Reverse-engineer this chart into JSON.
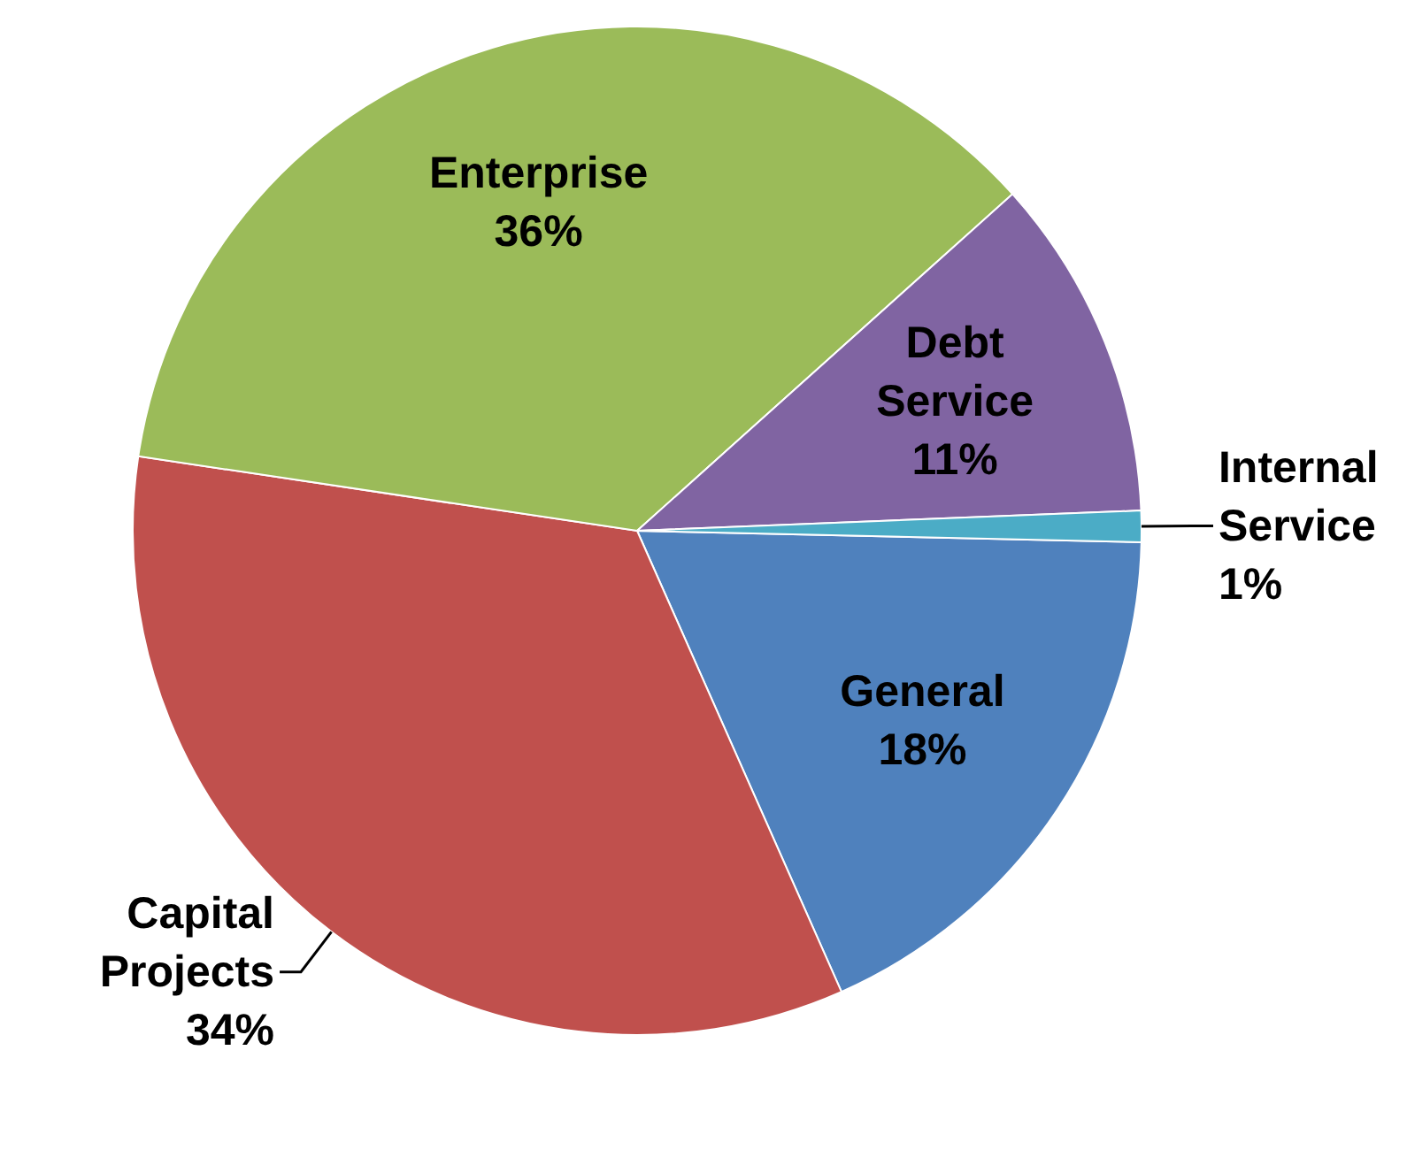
{
  "chart_data": {
    "type": "pie",
    "categories": [
      "General",
      "Capital Projects",
      "Enterprise",
      "Debt Service",
      "Internal Service"
    ],
    "values": [
      18,
      34,
      36,
      11,
      1
    ],
    "colors": [
      "#4f81bd",
      "#c0504d",
      "#9bbb59",
      "#8064a2",
      "#4bacc6"
    ],
    "value_labels": [
      "18%",
      "34%",
      "36%",
      "11%",
      "1%"
    ]
  }
}
